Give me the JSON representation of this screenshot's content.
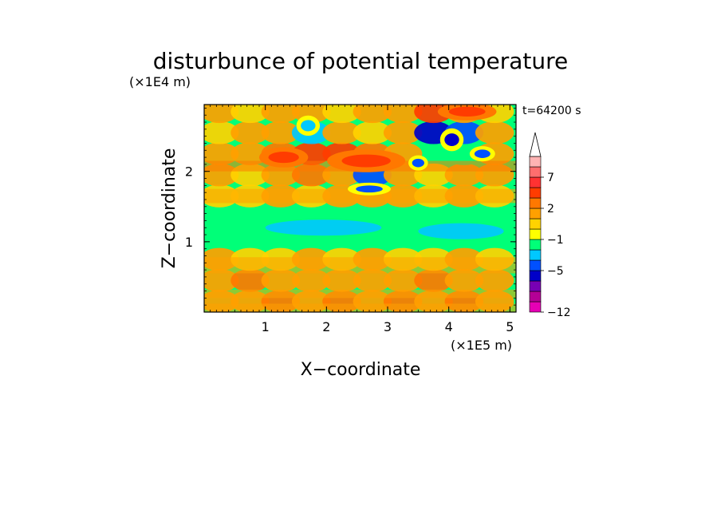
{
  "chart_data": {
    "type": "heatmap",
    "title": "disturbunce of potential temperature",
    "xlabel": "X−coordinate",
    "ylabel": "Z−coordinate",
    "x_scale_label": "(×1E5 m)",
    "y_scale_label": "(×1E4 m)",
    "time_label": "t=64200 s",
    "xlim": [
      0,
      5.1
    ],
    "ylim": [
      0,
      2.95
    ],
    "x_ticks": [
      1,
      2,
      3,
      4,
      5
    ],
    "x_tick_labels": [
      "1",
      "2",
      "3",
      "4",
      "5"
    ],
    "y_ticks": [
      1,
      2
    ],
    "y_tick_labels": [
      "1",
      "2"
    ],
    "colorbar": {
      "levels": [
        -12,
        -11,
        -9,
        -7,
        -5,
        -4,
        -3,
        -1,
        0,
        1,
        2,
        3,
        5,
        7,
        9,
        11
      ],
      "tick_labels": [
        "−12",
        "−5",
        "−1",
        "2",
        "7"
      ],
      "tick_values": [
        -12,
        -5,
        -1,
        2,
        7
      ],
      "colors": [
        "#e600b4",
        "#b40096",
        "#7800b4",
        "#0000c8",
        "#0050ff",
        "#00c8ff",
        "#00ff78",
        "#ffff00",
        "#ffd200",
        "#ffa000",
        "#ff7800",
        "#ff3c00",
        "#ff3232",
        "#ff6e6e",
        "#ffb4b4"
      ],
      "extend": "max"
    },
    "contour_grid": {
      "x": [
        0.25,
        0.75,
        1.25,
        1.75,
        2.25,
        2.75,
        3.25,
        3.75,
        4.25,
        4.75
      ],
      "z": [
        0.15,
        0.45,
        0.75,
        1.05,
        1.35,
        1.65,
        1.95,
        2.25,
        2.55,
        2.85
      ],
      "values": [
        [
          1,
          1,
          2,
          1,
          2,
          1,
          2,
          1,
          2,
          1
        ],
        [
          1,
          2,
          1,
          1,
          1,
          1,
          1,
          2,
          1,
          1
        ],
        [
          1,
          0,
          0,
          1,
          0,
          1,
          0,
          0,
          1,
          0
        ],
        [
          -1,
          -1,
          -1,
          -1,
          -1,
          -1,
          -1,
          -1,
          -1,
          -1
        ],
        [
          -1,
          -1,
          -1,
          -2,
          -1,
          -1,
          -1,
          -1,
          -2,
          -1
        ],
        [
          0,
          0,
          1,
          0,
          1,
          1,
          1,
          0,
          1,
          0
        ],
        [
          1,
          0,
          1,
          2,
          1,
          -5,
          1,
          0,
          1,
          1
        ],
        [
          1,
          1,
          2,
          3,
          3,
          2,
          1,
          -1,
          -2,
          1
        ],
        [
          0,
          1,
          1,
          -4,
          1,
          0,
          1,
          -6,
          -5,
          1
        ],
        [
          1,
          0,
          1,
          1,
          0,
          1,
          1,
          3,
          1,
          0
        ]
      ]
    }
  }
}
